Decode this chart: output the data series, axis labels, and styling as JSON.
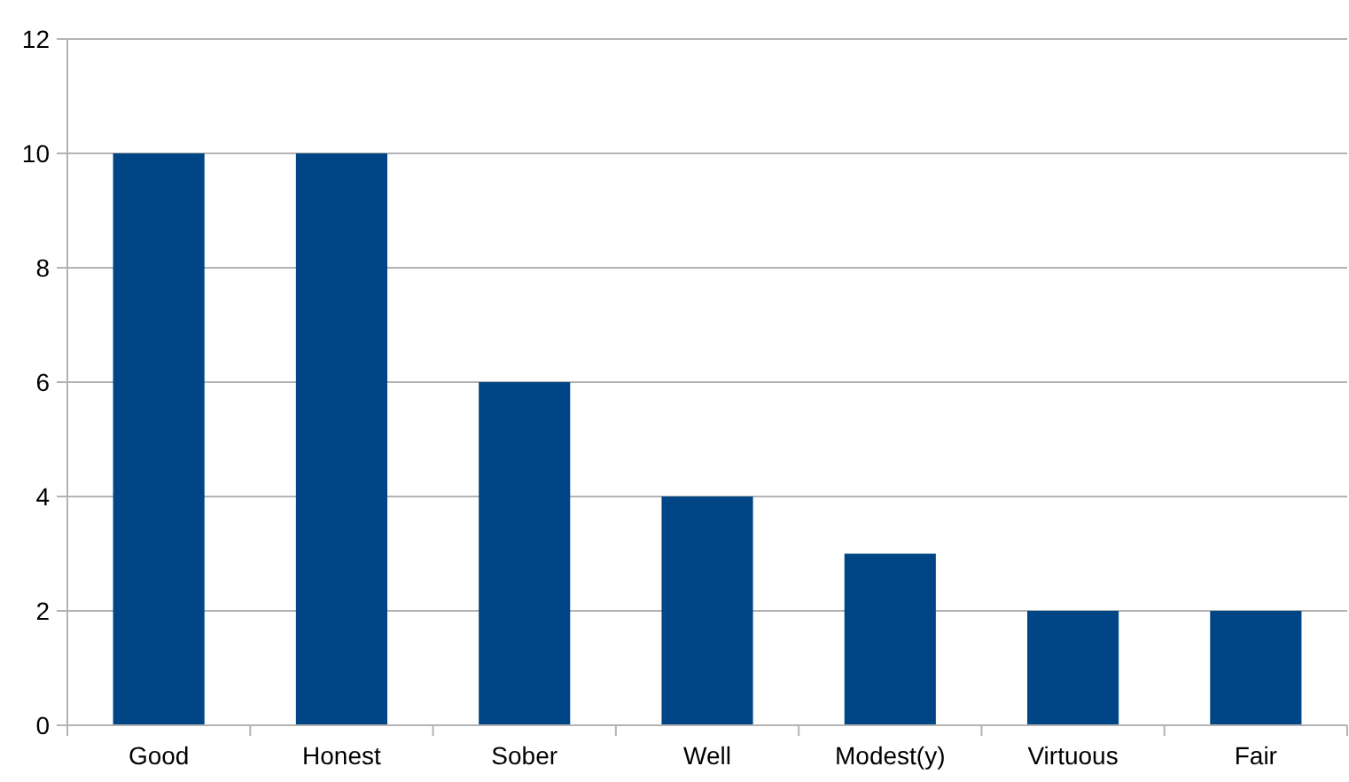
{
  "chart_data": {
    "type": "bar",
    "categories": [
      "Good",
      "Honest",
      "Sober",
      "Well",
      "Modest(y)",
      "Virtuous",
      "Fair"
    ],
    "values": [
      10,
      10,
      6,
      4,
      3,
      2,
      2
    ],
    "color": "#004586",
    "ylim": [
      0,
      12
    ],
    "yticks": [
      0,
      2,
      4,
      6,
      8,
      10,
      12
    ],
    "grid": "y"
  }
}
